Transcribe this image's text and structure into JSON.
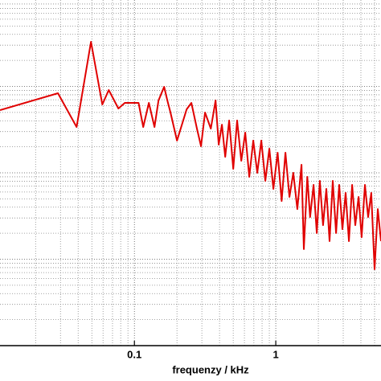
{
  "chart_data": {
    "type": "line",
    "xlabel": "frequenzy / kHz",
    "xscale": "log",
    "yscale": "log",
    "grid": true,
    "xlim": [
      0.0112,
      5.55
    ],
    "ylim": [
      0.001,
      10
    ],
    "xticks": [
      0.1,
      1
    ],
    "x": [
      0.0112,
      0.0288,
      0.039,
      0.0493,
      0.0593,
      0.0658,
      0.077,
      0.0855,
      0.107,
      0.1155,
      0.1265,
      0.1387,
      0.148,
      0.1623,
      0.171,
      0.18,
      0.2,
      0.234,
      0.253,
      0.277,
      0.296,
      0.316,
      0.347,
      0.375,
      0.395,
      0.416,
      0.439,
      0.468,
      0.5,
      0.533,
      0.57,
      0.608,
      0.649,
      0.693,
      0.74,
      0.79,
      0.844,
      0.901,
      0.962,
      1.03,
      1.1,
      1.17,
      1.25,
      1.33,
      1.42,
      1.52,
      1.58,
      1.67,
      1.75,
      1.85,
      1.95,
      2.05,
      2.16,
      2.28,
      2.4,
      2.53,
      2.67,
      2.81,
      2.96,
      3.12,
      3.29,
      3.47,
      3.65,
      3.85,
      4.05,
      4.27,
      4.5,
      4.74,
      5.0,
      5.27,
      5.55
    ],
    "series": [
      {
        "color": "#e00000",
        "values": [
          0.532,
          0.834,
          0.339,
          3.28,
          0.618,
          0.908,
          0.555,
          0.644,
          0.644,
          0.339,
          0.644,
          0.339,
          0.687,
          0.989,
          0.687,
          0.499,
          0.236,
          0.543,
          0.644,
          0.325,
          0.203,
          0.499,
          0.325,
          0.687,
          0.212,
          0.361,
          0.153,
          0.403,
          0.111,
          0.403,
          0.138,
          0.292,
          0.0898,
          0.236,
          0.1,
          0.236,
          0.0807,
          0.19,
          0.0652,
          0.171,
          0.0472,
          0.171,
          0.0526,
          0.1,
          0.0381,
          0.124,
          0.0131,
          0.0898,
          0.0308,
          0.0725,
          0.0201,
          0.0807,
          0.0248,
          0.0652,
          0.0162,
          0.0807,
          0.0201,
          0.0725,
          0.0223,
          0.0585,
          0.0162,
          0.0725,
          0.0248,
          0.0526,
          0.018,
          0.0725,
          0.0308,
          0.0585,
          0.00766,
          0.0381,
          0.0162
        ]
      }
    ]
  }
}
